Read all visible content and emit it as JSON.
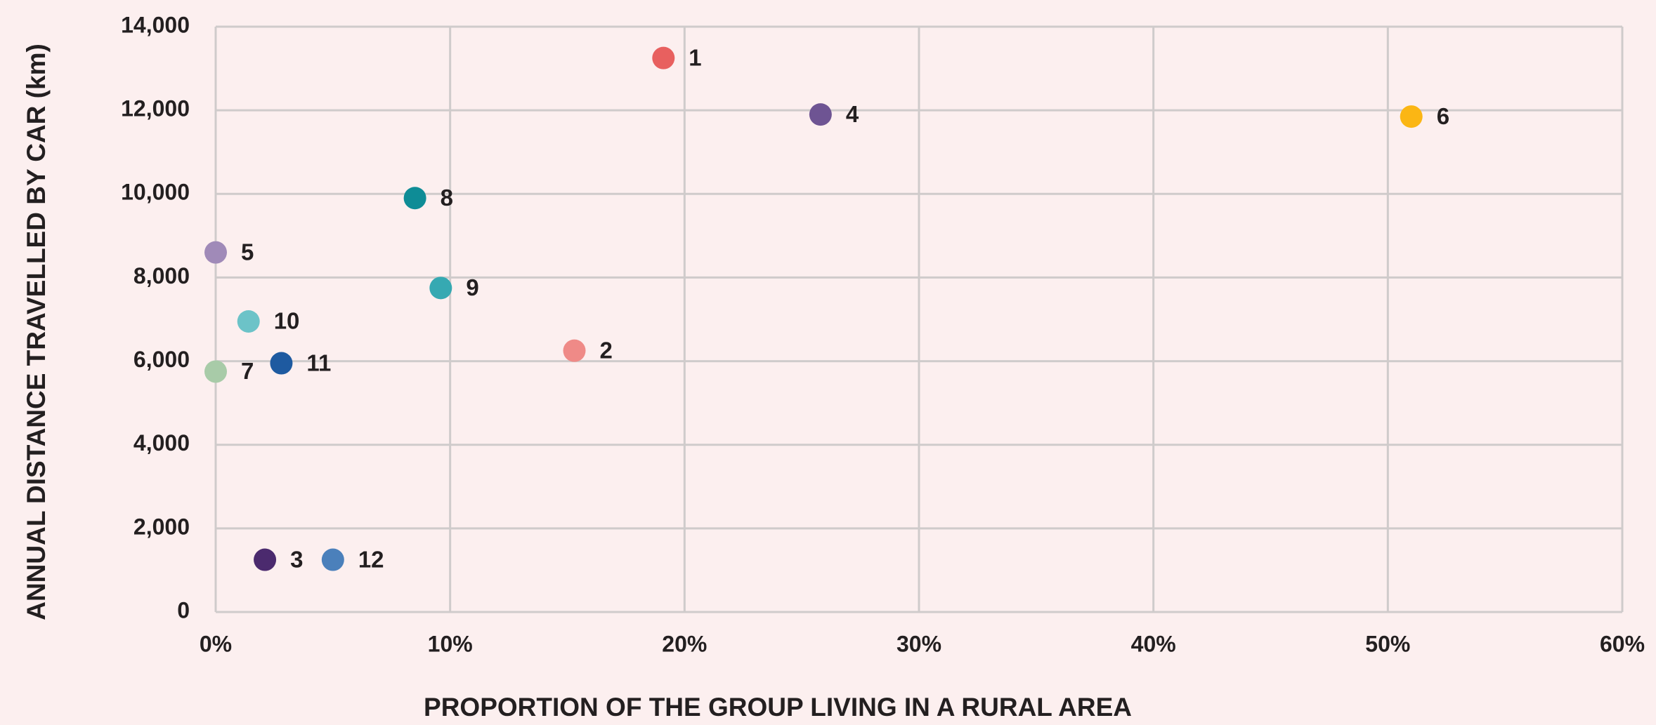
{
  "chart_data": {
    "type": "scatter",
    "x_label": "PROPORTION OF THE GROUP LIVING IN A RURAL AREA",
    "y_label": "ANNUAL DISTANCE TRAVELLED BY CAR (km)",
    "labels": [
      "1",
      "2",
      "3",
      "4",
      "5",
      "6",
      "7",
      "8",
      "9",
      "10",
      "11",
      "12"
    ],
    "x": [
      19.1,
      15.3,
      2.1,
      25.8,
      0,
      51.0,
      0,
      8.5,
      9.6,
      1.4,
      2.8,
      5.0
    ],
    "y": [
      13250,
      6250,
      1250,
      11900,
      8600,
      11850,
      5750,
      9900,
      7750,
      6950,
      5950,
      1250
    ],
    "colors": [
      "#e8605f",
      "#ef8a87",
      "#4b2a6e",
      "#6e5493",
      "#a08ab8",
      "#fbb614",
      "#a8cba8",
      "#0e8c96",
      "#36a9b2",
      "#6cc3c8",
      "#1e5aa0",
      "#4b80bb"
    ],
    "xlim": [
      0,
      60
    ],
    "xticks": [
      {
        "value": 0,
        "label": "0%"
      },
      {
        "value": 10,
        "label": "10%"
      },
      {
        "value": 20,
        "label": "20%"
      },
      {
        "value": 30,
        "label": "30%"
      },
      {
        "value": 40,
        "label": "40%"
      },
      {
        "value": 50,
        "label": "50%"
      },
      {
        "value": 60,
        "label": "60%"
      }
    ],
    "ylim": [
      0,
      14000
    ],
    "yticks": [
      0,
      {
        "value": 2000,
        "label": "2,000"
      },
      {
        "value": 4000,
        "label": "4,000"
      },
      {
        "value": 6000,
        "label": "6,000"
      },
      {
        "value": 8000,
        "label": "8,000"
      },
      {
        "value": 10000,
        "label": "10,000"
      },
      {
        "value": 12000,
        "label": "12,000"
      },
      {
        "value": 14000,
        "label": "14,000"
      }
    ],
    "grid": true
  }
}
